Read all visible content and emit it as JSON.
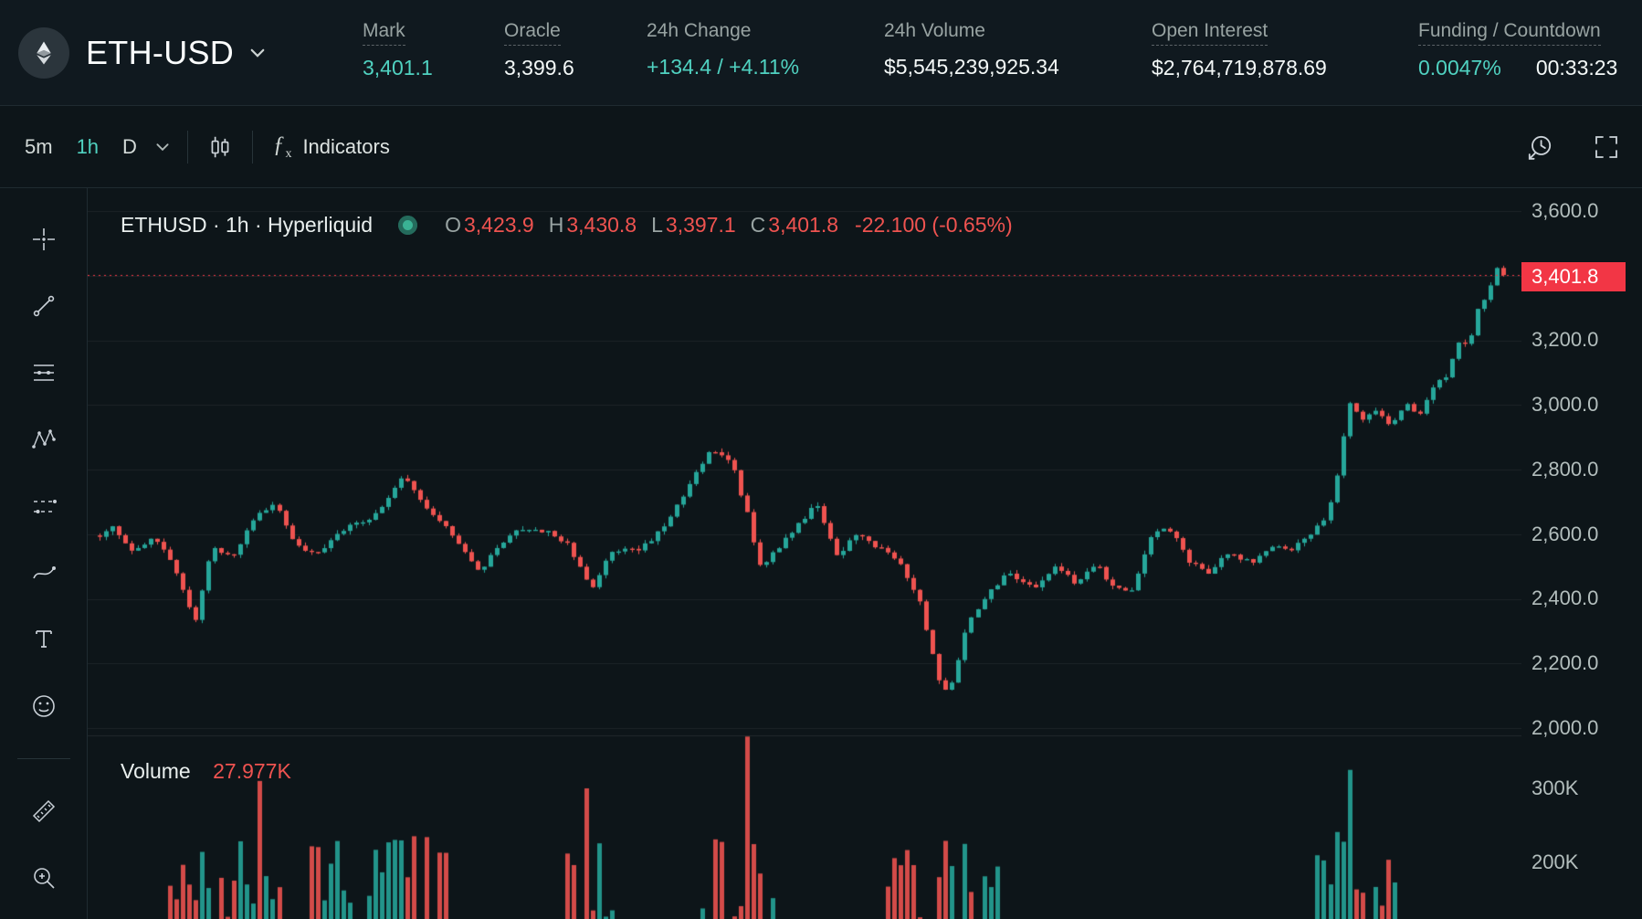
{
  "colors": {
    "accent_teal": "#50d2c1",
    "candle_up": "#26a69a",
    "candle_down": "#ef5350",
    "red_text": "#ef5350",
    "last_price_bg": "#f23645",
    "background": "#0d1519",
    "header_background": "#10191f"
  },
  "header": {
    "symbol": "ETH-USD",
    "stats": [
      {
        "label": "Mark",
        "value": "3,401.1"
      },
      {
        "label": "Oracle",
        "value": "3,399.6"
      },
      {
        "label": "24h Change",
        "value": "+134.4 / +4.11%"
      },
      {
        "label": "24h Volume",
        "value": "$5,545,239,925.34"
      },
      {
        "label": "Open Interest",
        "value": "$2,764,719,878.69"
      },
      {
        "label": "Funding / Countdown",
        "value": "0.0047%",
        "value2": "00:33:23"
      }
    ]
  },
  "toolbar": {
    "intervals": [
      {
        "label": "5m",
        "active": false
      },
      {
        "label": "1h",
        "active": true
      },
      {
        "label": "D",
        "active": false
      }
    ],
    "fx": "ƒ",
    "fx_sub": "x",
    "indicators_label": "Indicators"
  },
  "chart": {
    "legend": {
      "title": "ETHUSD · 1h · Hyperliquid",
      "o_label": "O",
      "o": "3,423.9",
      "h_label": "H",
      "h": "3,430.8",
      "l_label": "L",
      "l": "3,397.1",
      "c_label": "C",
      "c": "3,401.8",
      "change": "-22.100 (-0.65%)"
    },
    "last_price_label": "3,401.8",
    "price_ticks": [
      "3,600.0",
      "3,200.0",
      "3,000.0",
      "2,800.0",
      "2,600.0",
      "2,400.0",
      "2,200.0",
      "2,000.0"
    ],
    "volume_label": "Volume",
    "volume_value": "27.977K",
    "volume_ticks": [
      "300K",
      "200K"
    ]
  },
  "chart_data": {
    "type": "candlestick",
    "symbol": "ETHUSD",
    "interval": "1h",
    "venue": "Hyperliquid",
    "ohlc": {
      "open": 3423.9,
      "high": 3430.8,
      "low": 3397.1,
      "close": 3401.8,
      "change": -22.1,
      "change_pct": -0.65
    },
    "last_price": 3401.8,
    "current_bar_volume_k": 27.977,
    "price_axis": {
      "min": 2000,
      "max": 3600,
      "tick_step": 200,
      "ticks": [
        3600,
        3400,
        3200,
        3000,
        2800,
        2600,
        2400,
        2200,
        2000
      ]
    },
    "volume_axis": {
      "ticks": [
        300000,
        200000
      ]
    },
    "candle_count": 220,
    "price_path": [
      [
        0,
        2595
      ],
      [
        0.01,
        2620
      ],
      [
        0.025,
        2545
      ],
      [
        0.04,
        2590
      ],
      [
        0.055,
        2480
      ],
      [
        0.068,
        2330
      ],
      [
        0.08,
        2560
      ],
      [
        0.095,
        2530
      ],
      [
        0.11,
        2650
      ],
      [
        0.125,
        2700
      ],
      [
        0.14,
        2560
      ],
      [
        0.155,
        2545
      ],
      [
        0.175,
        2620
      ],
      [
        0.195,
        2650
      ],
      [
        0.215,
        2780
      ],
      [
        0.23,
        2700
      ],
      [
        0.25,
        2600
      ],
      [
        0.27,
        2480
      ],
      [
        0.285,
        2570
      ],
      [
        0.3,
        2620
      ],
      [
        0.32,
        2610
      ],
      [
        0.335,
        2560
      ],
      [
        0.35,
        2430
      ],
      [
        0.365,
        2545
      ],
      [
        0.385,
        2550
      ],
      [
        0.4,
        2620
      ],
      [
        0.42,
        2750
      ],
      [
        0.435,
        2870
      ],
      [
        0.45,
        2820
      ],
      [
        0.462,
        2650
      ],
      [
        0.47,
        2500
      ],
      [
        0.485,
        2565
      ],
      [
        0.5,
        2640
      ],
      [
        0.51,
        2700
      ],
      [
        0.525,
        2530
      ],
      [
        0.54,
        2600
      ],
      [
        0.555,
        2560
      ],
      [
        0.57,
        2520
      ],
      [
        0.585,
        2380
      ],
      [
        0.598,
        2150
      ],
      [
        0.605,
        2100
      ],
      [
        0.618,
        2320
      ],
      [
        0.632,
        2420
      ],
      [
        0.648,
        2480
      ],
      [
        0.665,
        2430
      ],
      [
        0.68,
        2500
      ],
      [
        0.695,
        2450
      ],
      [
        0.71,
        2505
      ],
      [
        0.722,
        2440
      ],
      [
        0.735,
        2430
      ],
      [
        0.75,
        2600
      ],
      [
        0.762,
        2620
      ],
      [
        0.775,
        2520
      ],
      [
        0.79,
        2480
      ],
      [
        0.805,
        2545
      ],
      [
        0.82,
        2510
      ],
      [
        0.835,
        2560
      ],
      [
        0.85,
        2555
      ],
      [
        0.862,
        2600
      ],
      [
        0.875,
        2660
      ],
      [
        0.882,
        2800
      ],
      [
        0.89,
        3000
      ],
      [
        0.9,
        2960
      ],
      [
        0.91,
        2980
      ],
      [
        0.92,
        2940
      ],
      [
        0.93,
        3010
      ],
      [
        0.94,
        2970
      ],
      [
        0.95,
        3060
      ],
      [
        0.96,
        3090
      ],
      [
        0.968,
        3200
      ],
      [
        0.975,
        3180
      ],
      [
        0.982,
        3300
      ],
      [
        0.99,
        3360
      ],
      [
        0.996,
        3430
      ],
      [
        1,
        3402
      ]
    ],
    "volume_spikes": [
      [
        0.066,
        170000,
        "down"
      ],
      [
        0.116,
        310000,
        "down"
      ],
      [
        0.347,
        300000,
        "down"
      ],
      [
        0.463,
        370000,
        "down"
      ],
      [
        0.597,
        180000,
        "down"
      ],
      [
        0.608,
        195000,
        "up"
      ],
      [
        0.623,
        160000,
        "down"
      ],
      [
        0.889,
        325000,
        "up"
      ]
    ],
    "volume_active_zones": [
      [
        0.05,
        0.13
      ],
      [
        0.15,
        0.25
      ],
      [
        0.33,
        0.37
      ],
      [
        0.42,
        0.48
      ],
      [
        0.56,
        0.64
      ],
      [
        0.86,
        0.93
      ]
    ],
    "colors": {
      "up": "#26a69a",
      "down": "#ef5350",
      "last_line": "#f23645"
    }
  }
}
